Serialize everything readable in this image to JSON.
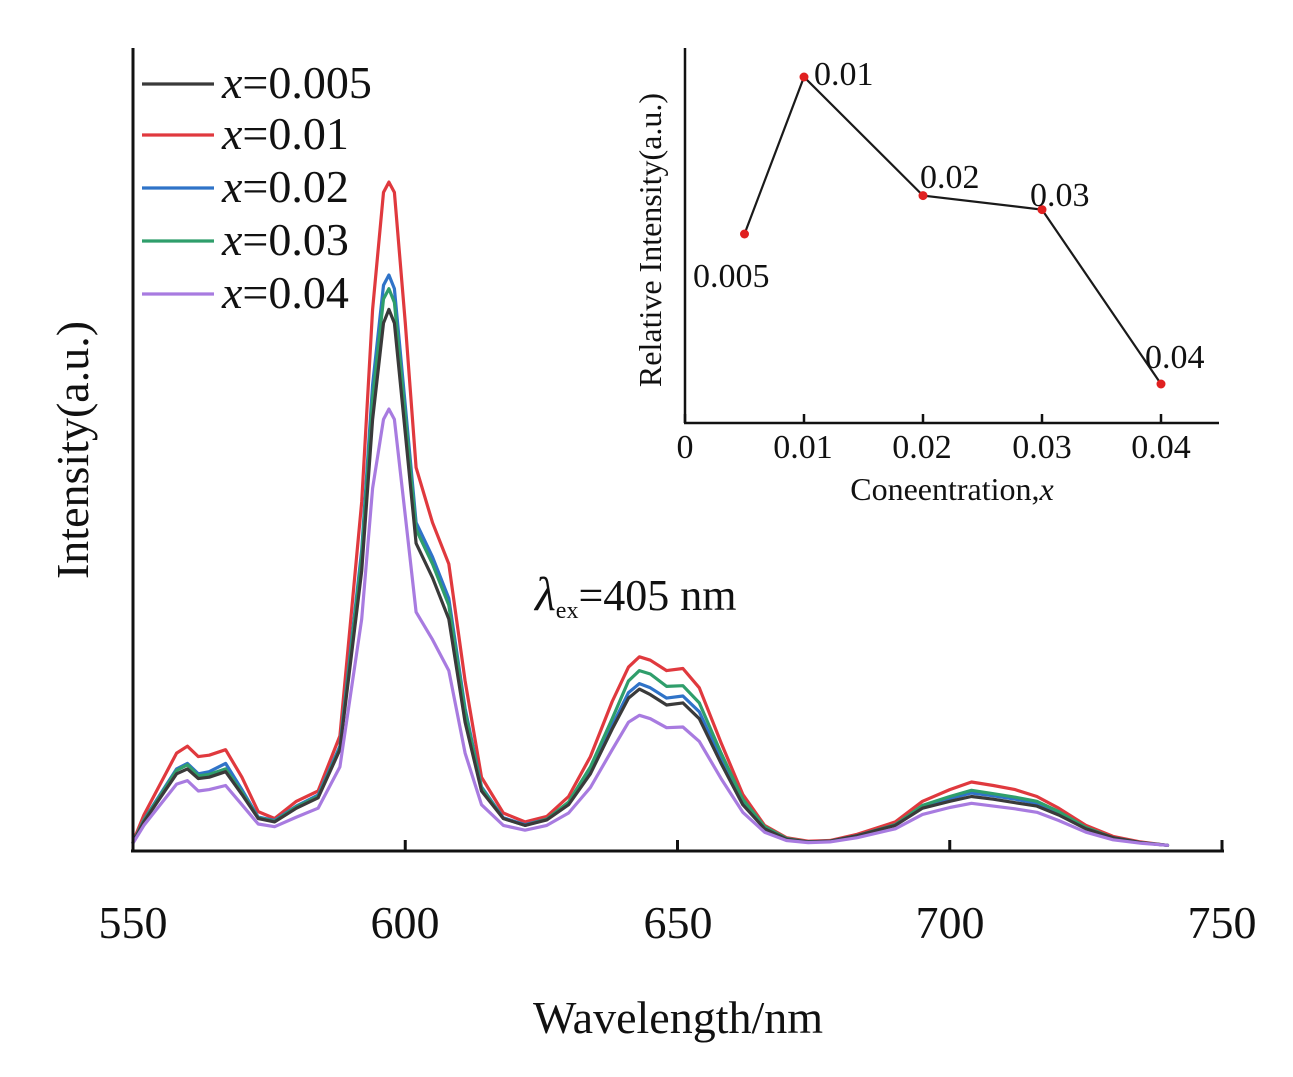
{
  "chart_data": [
    {
      "type": "line",
      "xlabel": "Wavelength/nm",
      "ylabel": "Intensity(a.u.)",
      "xlim": [
        550,
        750
      ],
      "ylim": [
        0,
        100
      ],
      "xticks": [
        "550",
        "600",
        "650",
        "700",
        "750"
      ],
      "annotation": {
        "symbol": "λ",
        "subscript": "ex",
        "text": "=405 nm"
      },
      "legend_position": "top-left",
      "x": [
        548,
        552,
        555,
        558,
        560,
        562,
        564,
        567,
        570,
        573,
        576,
        580,
        584,
        588,
        592,
        594,
        596,
        597,
        598,
        600,
        602,
        605,
        608,
        611,
        614,
        618,
        622,
        626,
        630,
        634,
        638,
        641,
        643,
        645,
        648,
        651,
        654,
        658,
        662,
        666,
        670,
        674,
        678,
        683,
        690,
        695,
        700,
        704,
        708,
        712,
        716,
        720,
        725,
        730,
        735,
        740
      ],
      "series": [
        {
          "name": "x=0.005",
          "label_prefix": "x",
          "label_value": "=0.005",
          "color": "#3a3a3a",
          "values": [
            0.5,
            3.5,
            7,
            10.5,
            11.2,
            9.8,
            10,
            10.8,
            7.5,
            4,
            3.5,
            5.5,
            7,
            14,
            40,
            62,
            76,
            78,
            76,
            60,
            44,
            39,
            33,
            18,
            8,
            4,
            3,
            3.8,
            6,
            10.5,
            17,
            21.5,
            22.8,
            22,
            20.5,
            20.8,
            18.5,
            12,
            6,
            2.5,
            1,
            0.6,
            0.7,
            1.5,
            3,
            5.5,
            6.5,
            7.2,
            6.8,
            6.3,
            5.8,
            4.5,
            2.5,
            1.2,
            0.5,
            0.1
          ]
        },
        {
          "name": "x=0.01",
          "label_prefix": "x",
          "label_value": "=0.01",
          "color": "#e0393e",
          "values": [
            0.6,
            4.5,
            9,
            13.5,
            14.5,
            13,
            13.2,
            14,
            10,
            5,
            4,
            6.5,
            8,
            16,
            50,
            78,
            95,
            96.5,
            95,
            76,
            55,
            47,
            41,
            24,
            10,
            4.8,
            3.5,
            4.3,
            7.2,
            13,
            21,
            26,
            27.5,
            27,
            25.5,
            25.8,
            23,
            15,
            7.5,
            3,
            1.2,
            0.7,
            0.8,
            1.7,
            3.5,
            6.5,
            8.2,
            9.3,
            8.8,
            8.2,
            7.2,
            5.5,
            3,
            1.4,
            0.6,
            0.1
          ]
        },
        {
          "name": "x=0.02",
          "label_prefix": "x",
          "label_value": "=0.02",
          "color": "#2f73c8",
          "values": [
            0.5,
            3.8,
            7.5,
            11.2,
            12,
            10.5,
            10.8,
            12,
            8.2,
            4.2,
            3.7,
            5.8,
            7.4,
            14.5,
            43,
            67,
            81.5,
            83,
            81,
            64,
            47,
            42,
            36,
            20,
            8.6,
            4.1,
            3.1,
            3.9,
            6.2,
            10.8,
            17.5,
            22.3,
            23.6,
            23,
            21.5,
            21.8,
            19.5,
            12.6,
            6.3,
            2.6,
            1,
            0.6,
            0.7,
            1.5,
            3.1,
            5.7,
            6.9,
            7.7,
            7.3,
            6.8,
            6.2,
            4.8,
            2.6,
            1.2,
            0.5,
            0.1
          ]
        },
        {
          "name": "x=0.03",
          "label_prefix": "x",
          "label_value": "=0.03",
          "color": "#2f9e6b",
          "values": [
            0.5,
            3.7,
            7.3,
            11,
            11.8,
            10.2,
            10.4,
            11.2,
            7.8,
            4.1,
            3.6,
            5.7,
            7.2,
            14.2,
            42,
            65,
            79.5,
            81,
            79,
            62.5,
            46,
            41,
            35,
            19.5,
            8.4,
            4,
            3,
            3.9,
            6.4,
            11.5,
            18.5,
            24,
            25.5,
            25,
            23.2,
            23.3,
            20.8,
            13.5,
            6.8,
            2.8,
            1.1,
            0.6,
            0.7,
            1.5,
            3.1,
            5.9,
            7.2,
            8.1,
            7.6,
            7.1,
            6.5,
            5,
            2.7,
            1.2,
            0.5,
            0.1
          ]
        },
        {
          "name": "x=0.04",
          "label_prefix": "x",
          "label_value": "=0.04",
          "color": "#a87be0",
          "values": [
            0.4,
            3,
            6,
            9,
            9.5,
            8,
            8.2,
            8.8,
            6,
            3.2,
            2.8,
            4.2,
            5.5,
            11.5,
            33,
            52,
            62,
            63.5,
            62,
            48,
            34,
            30,
            25.5,
            13.5,
            6,
            3,
            2.3,
            3,
            4.8,
            8.5,
            14,
            18,
            19,
            18.5,
            17.2,
            17.3,
            15.2,
            9.8,
            4.9,
            2,
            0.8,
            0.5,
            0.6,
            1.2,
            2.5,
            4.6,
            5.6,
            6.2,
            5.8,
            5.4,
            4.9,
            3.7,
            2,
            0.9,
            0.4,
            0.1
          ]
        }
      ]
    },
    {
      "type": "line",
      "xlabel": "Coneentration,x",
      "xlabel_main": "Coneentration,",
      "xlabel_var": "x",
      "ylabel": "Relative Intensity(a.u.)",
      "xlim": [
        0,
        0.045
      ],
      "ylim": [
        0,
        100
      ],
      "xticks": [
        "0",
        "0.01",
        "0.02",
        "0.03",
        "0.04"
      ],
      "x": [
        0.005,
        0.01,
        0.02,
        0.03,
        0.04
      ],
      "values": [
        55,
        100,
        66,
        62,
        12
      ],
      "point_labels": [
        "0.005",
        "0.01",
        "0.02",
        "0.03",
        "0.04"
      ],
      "line_color": "#1a1a1a",
      "marker_color": "#e02020"
    }
  ]
}
